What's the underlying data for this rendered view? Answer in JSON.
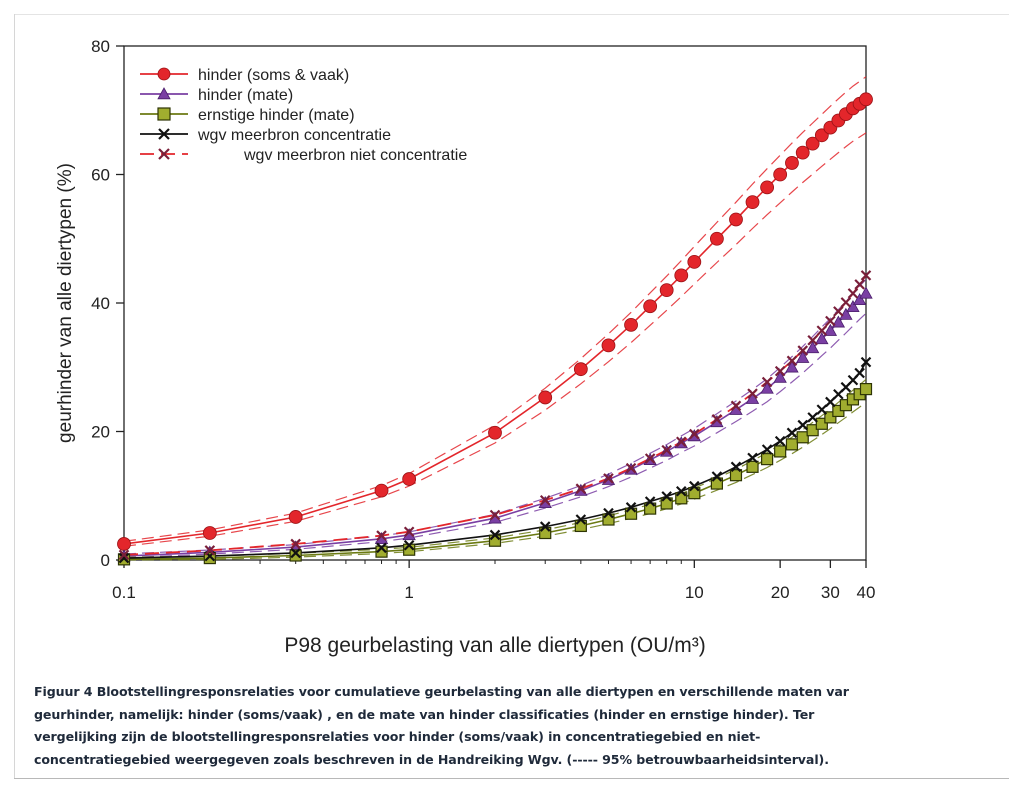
{
  "chart_data": {
    "type": "line",
    "xscale": "log",
    "xlabel": "P98 geurbelasting van alle diertypen (OU/m³)",
    "ylabel": "geurhinder van alle diertypen (%)",
    "xlim": [
      0.1,
      40
    ],
    "ylim": [
      0,
      80
    ],
    "xticks": [
      {
        "value": 0.1,
        "label": "0.1"
      },
      {
        "value": 1,
        "label": "1"
      },
      {
        "value": 10,
        "label": "10"
      },
      {
        "value": 20,
        "label": "20"
      },
      {
        "value": 30,
        "label": "30"
      },
      {
        "value": 40,
        "label": "40"
      }
    ],
    "yticks": [
      {
        "value": 0,
        "label": "0"
      },
      {
        "value": 20,
        "label": "20"
      },
      {
        "value": 40,
        "label": "40"
      },
      {
        "value": 60,
        "label": "60"
      },
      {
        "value": 80,
        "label": "80"
      }
    ],
    "grid": false,
    "legend_position": "top-left",
    "series": [
      {
        "name": "hinder (soms & vaak)",
        "color": "#e3262b",
        "marker": "circle",
        "line": "solid",
        "ci_band": true,
        "x": [
          0.1,
          0.2,
          0.4,
          0.8,
          1,
          2,
          3,
          4,
          5,
          6,
          7,
          8,
          9,
          10,
          12,
          14,
          16,
          18,
          20,
          22,
          24,
          26,
          28,
          30,
          32,
          34,
          36,
          38,
          40
        ],
        "y": [
          2.5,
          4.2,
          6.7,
          10.8,
          12.6,
          19.8,
          25.3,
          29.7,
          33.4,
          36.6,
          39.5,
          42.0,
          44.3,
          46.4,
          50.0,
          53.0,
          55.7,
          58.0,
          60.0,
          61.8,
          63.4,
          64.8,
          66.1,
          67.3,
          68.4,
          69.4,
          70.3,
          71.0,
          71.7
        ]
      },
      {
        "name": "hinder (mate)",
        "color": "#7a3fa3",
        "marker": "triangle",
        "line": "solid",
        "ci_band": true,
        "x": [
          0.1,
          0.2,
          0.4,
          0.8,
          1,
          2,
          3,
          4,
          5,
          6,
          7,
          8,
          9,
          10,
          12,
          14,
          16,
          18,
          20,
          22,
          24,
          26,
          28,
          30,
          32,
          34,
          36,
          38,
          40
        ],
        "y": [
          0.6,
          1.2,
          2.0,
          3.3,
          3.9,
          6.5,
          8.9,
          10.8,
          12.5,
          14.1,
          15.6,
          16.9,
          18.2,
          19.3,
          21.5,
          23.4,
          25.1,
          26.7,
          28.4,
          30.0,
          31.5,
          33.0,
          34.4,
          35.7,
          37.0,
          38.2,
          39.4,
          40.5,
          41.5
        ]
      },
      {
        "name": "ernstige hinder (mate)",
        "color": "#6b7a12",
        "fill": "#a1ad2f",
        "marker": "square",
        "line": "solid",
        "ci_band": true,
        "x": [
          0.1,
          0.2,
          0.4,
          0.8,
          1,
          2,
          3,
          4,
          5,
          6,
          7,
          8,
          9,
          10,
          12,
          14,
          16,
          18,
          20,
          22,
          24,
          26,
          28,
          30,
          32,
          34,
          36,
          38,
          40
        ],
        "y": [
          0.1,
          0.3,
          0.7,
          1.3,
          1.6,
          3.0,
          4.2,
          5.3,
          6.3,
          7.2,
          8.0,
          8.8,
          9.6,
          10.4,
          11.9,
          13.2,
          14.5,
          15.7,
          16.9,
          18.0,
          19.1,
          20.2,
          21.2,
          22.2,
          23.2,
          24.1,
          25.0,
          25.8,
          26.6
        ]
      },
      {
        "name": "wgv meerbron concentratie",
        "color": "#111111",
        "marker": "x",
        "line": "solid",
        "ci_band": false,
        "x": [
          0.1,
          0.2,
          0.4,
          0.8,
          1,
          2,
          3,
          4,
          5,
          6,
          7,
          8,
          9,
          10,
          12,
          14,
          16,
          18,
          20,
          22,
          24,
          26,
          28,
          30,
          32,
          34,
          36,
          38,
          40
        ],
        "y": [
          0.3,
          0.6,
          1.1,
          1.9,
          2.3,
          3.9,
          5.2,
          6.3,
          7.3,
          8.2,
          9.1,
          9.9,
          10.7,
          11.5,
          13.0,
          14.5,
          15.9,
          17.2,
          18.5,
          19.8,
          21.0,
          22.2,
          23.4,
          24.6,
          25.8,
          26.9,
          28.0,
          29.1,
          30.8
        ]
      },
      {
        "name": "wgv meerbron niet concentratie",
        "color": "#e3262b",
        "marker_color": "#7a1f3a",
        "marker": "x",
        "line": "dashed",
        "ci_band": false,
        "x": [
          0.1,
          0.2,
          0.4,
          0.8,
          1,
          2,
          3,
          4,
          5,
          6,
          7,
          8,
          9,
          10,
          12,
          14,
          16,
          18,
          20,
          22,
          24,
          26,
          28,
          30,
          32,
          34,
          36,
          38,
          40
        ],
        "y": [
          0.8,
          1.5,
          2.5,
          3.8,
          4.4,
          7.0,
          9.3,
          11.1,
          12.7,
          14.3,
          15.8,
          17.1,
          18.4,
          19.6,
          21.9,
          24.0,
          25.9,
          27.7,
          29.4,
          31.0,
          32.6,
          34.2,
          35.7,
          37.2,
          38.7,
          40.1,
          41.5,
          42.9,
          44.3
        ]
      }
    ]
  },
  "caption": {
    "lines": [
      "Figuur 4 Blootstellingresponsrelaties voor cumulatieve geurbelasting van alle diertypen en verschillende maten var",
      "geurhinder, namelijk: hinder (soms/vaak) , en de mate van hinder classificaties (hinder en ernstige hinder). Ter",
      "vergelijking zijn de blootstellingresponsrelaties voor hinder (soms/vaak) in concentratiegebied en niet-",
      "concentratiegebied weergegeven zoals beschreven in de Handreiking Wgv. (----- 95% betrouwbaarheidsinterval)."
    ]
  }
}
